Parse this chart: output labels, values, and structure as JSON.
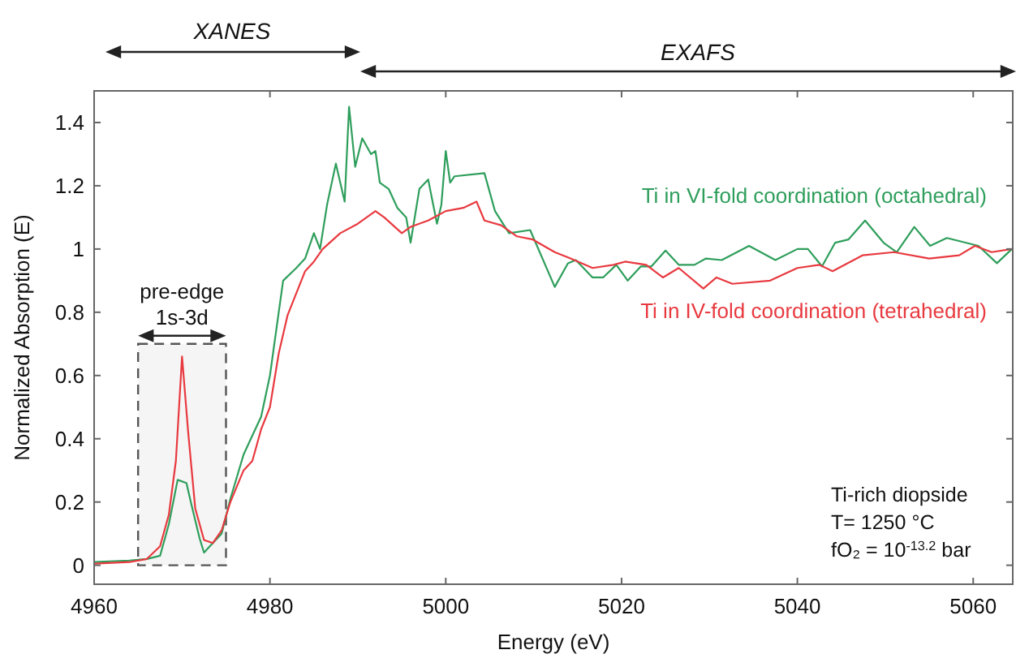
{
  "chart_data": {
    "type": "line",
    "xlabel": "Energy (eV)",
    "ylabel": "Normalized Absorption (E)",
    "xlim": [
      4960,
      5064.5
    ],
    "ylim": [
      -0.06,
      1.5
    ],
    "xticks": [
      4960,
      4980,
      5000,
      5020,
      5040,
      5060
    ],
    "yticks": [
      0,
      0.2,
      0.4,
      0.6,
      0.8,
      1,
      1.2,
      1.4
    ],
    "grid": false,
    "marker": "none",
    "line_style": "solid",
    "series": [
      {
        "name": "Ti in VI-fold coordination (octahedral)",
        "color": "#2e9e5b",
        "x": [
          4960,
          4964,
          4966,
          4967.5,
          4968.5,
          4969.5,
          4970.5,
          4971,
          4972,
          4972.5,
          4973.5,
          4974.5,
          4975.5,
          4977,
          4978,
          4979,
          4980,
          4980.8,
          4981.5,
          4983,
          4984,
          4985,
          4985.7,
          4986.5,
          4987.5,
          4988.5,
          4989,
          4989.7,
          4990.5,
          4991.5,
          4992,
          4992.5,
          4993.5,
          4994.5,
          4995.5,
          4996,
          4997,
          4998,
          4999,
          4999.5,
          5000,
          5000.5,
          5001,
          5004.4,
          5005.6,
          5007.2,
          5009.6,
          5012.4,
          5013.9,
          5014.8,
          5016.7,
          5017.9,
          5019.4,
          5020.7,
          5022.2,
          5023.4,
          5025,
          5026.5,
          5028.3,
          5029.6,
          5031.4,
          5034.5,
          5037.5,
          5040,
          5041.2,
          5042.8,
          5044.3,
          5045.8,
          5047.7,
          5049.8,
          5051.3,
          5053.3,
          5055.1,
          5057,
          5060.6,
          5062.7,
          5064.4
        ],
        "values": [
          0.01,
          0.015,
          0.02,
          0.03,
          0.13,
          0.27,
          0.26,
          0.2,
          0.085,
          0.04,
          0.07,
          0.1,
          0.21,
          0.35,
          0.41,
          0.47,
          0.6,
          0.76,
          0.9,
          0.94,
          0.97,
          1.05,
          1.0,
          1.14,
          1.27,
          1.15,
          1.45,
          1.26,
          1.35,
          1.3,
          1.31,
          1.21,
          1.19,
          1.13,
          1.1,
          1.02,
          1.19,
          1.22,
          1.08,
          1.14,
          1.31,
          1.21,
          1.23,
          1.24,
          1.12,
          1.05,
          1.06,
          0.88,
          0.955,
          0.965,
          0.91,
          0.91,
          0.95,
          0.9,
          0.945,
          0.945,
          0.995,
          0.95,
          0.95,
          0.97,
          0.965,
          1.01,
          0.965,
          1.0,
          1.0,
          0.945,
          1.02,
          1.03,
          1.09,
          1.02,
          0.99,
          1.07,
          1.01,
          1.035,
          1.01,
          0.955,
          1.0
        ]
      },
      {
        "name": "Ti in IV-fold coordination (tetrahedral)",
        "color": "#e8393f",
        "x": [
          4960,
          4964,
          4966,
          4967.5,
          4968.5,
          4969.3,
          4970,
          4970.7,
          4971.5,
          4972.5,
          4973.5,
          4974.5,
          4975.5,
          4977,
          4978,
          4979,
          4980,
          4981,
          4982,
          4983,
          4984,
          4985,
          4986,
          4988,
          4990,
          4992,
          4993,
          4995,
          4996,
          4998,
          5000,
          5002,
          5003.5,
          5004.4,
          5006.3,
          5008.1,
          5009.9,
          5012.4,
          5014.2,
          5016.7,
          5019.1,
          5020.4,
          5022.8,
          5024.7,
          5026.5,
          5029.3,
          5030.8,
          5032.6,
          5036.9,
          5040,
          5042.5,
          5044,
          5047.4,
          5051,
          5055,
          5058.4,
          5060.2,
          5062.1,
          5064.4
        ],
        "values": [
          0.005,
          0.01,
          0.02,
          0.06,
          0.16,
          0.33,
          0.66,
          0.42,
          0.18,
          0.08,
          0.07,
          0.11,
          0.2,
          0.3,
          0.33,
          0.43,
          0.5,
          0.67,
          0.79,
          0.86,
          0.93,
          0.96,
          1.0,
          1.05,
          1.08,
          1.12,
          1.1,
          1.05,
          1.07,
          1.09,
          1.12,
          1.13,
          1.15,
          1.09,
          1.075,
          1.04,
          1.03,
          0.99,
          0.97,
          0.94,
          0.95,
          0.96,
          0.95,
          0.91,
          0.94,
          0.875,
          0.91,
          0.89,
          0.9,
          0.94,
          0.95,
          0.93,
          0.98,
          0.99,
          0.97,
          0.98,
          1.01,
          0.99,
          1.0
        ]
      }
    ],
    "bands": [
      {
        "axis": "x",
        "from": 4965,
        "to": 4975,
        "label": "pre-edge\n1s-3d",
        "color": "#555555"
      }
    ],
    "annotations": [
      "XANES",
      "EXAFS",
      "Ti-rich diopside",
      "T= 1250 °C",
      "fO₂ = 10$^{-13.2}$  bar"
    ]
  }
}
